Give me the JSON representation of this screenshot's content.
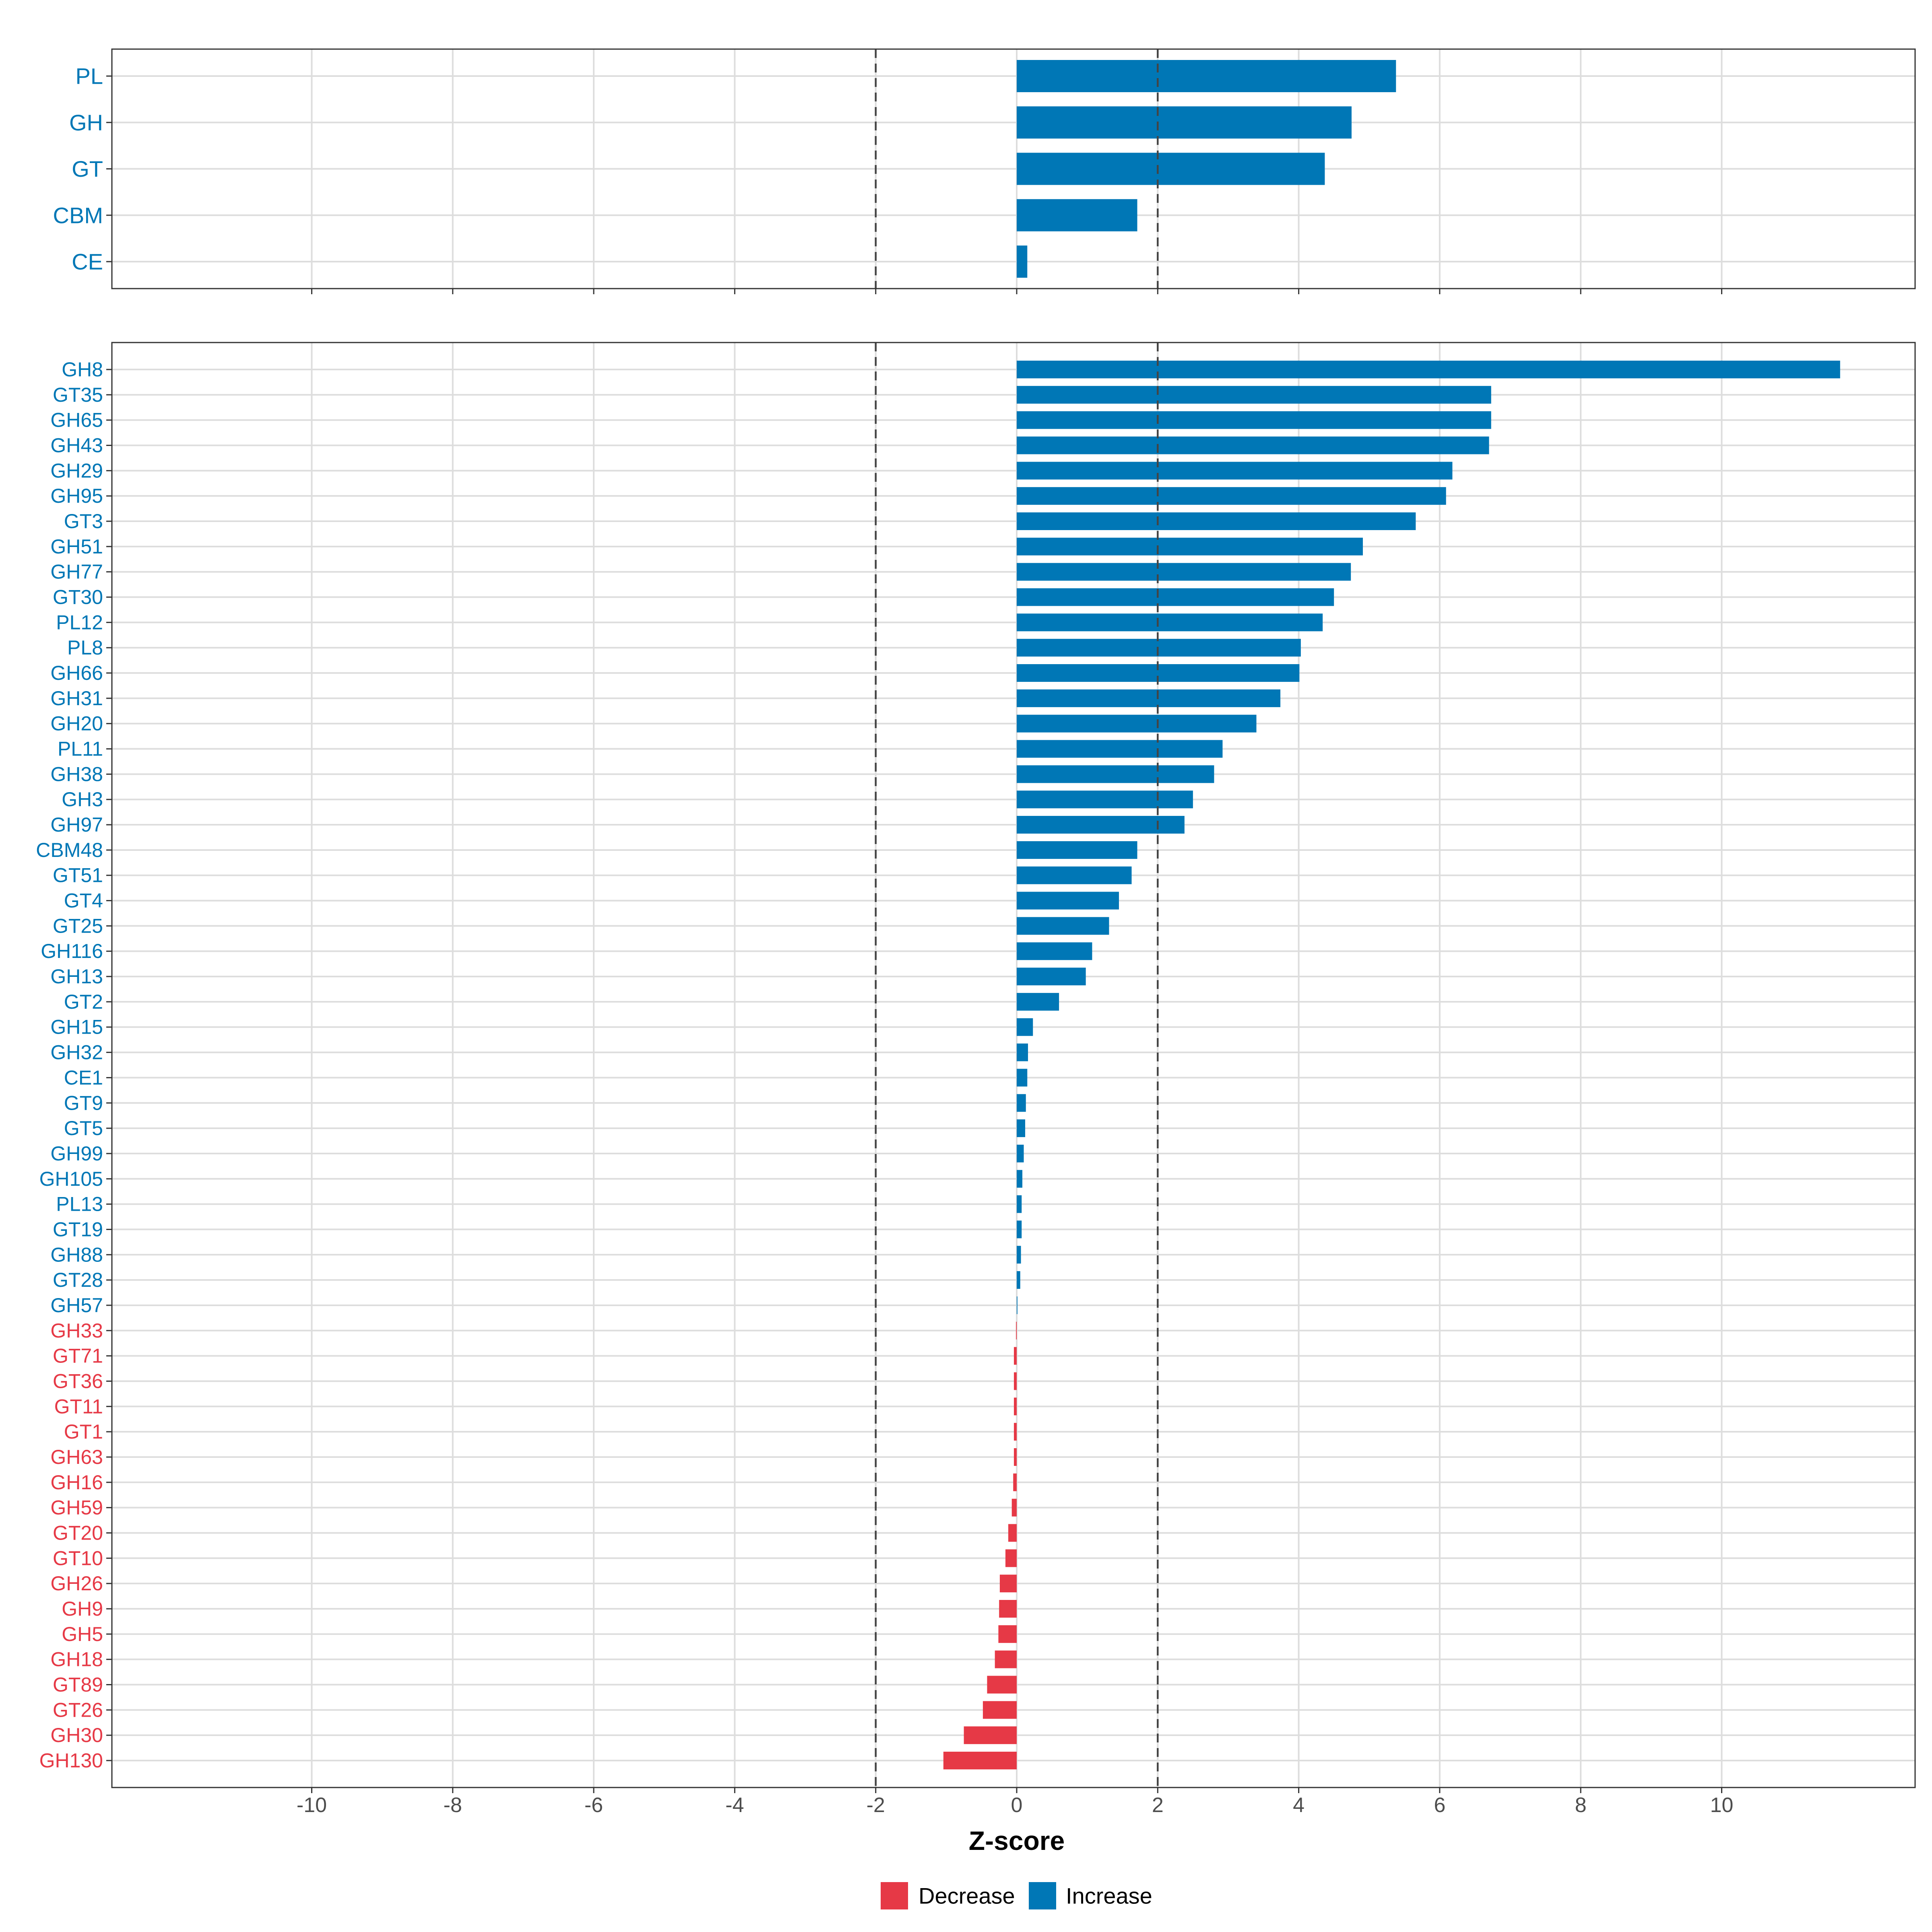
{
  "chart_data": [
    {
      "type": "bar",
      "orientation": "horizontal",
      "panel": "top",
      "categories": [
        "PL",
        "GH",
        "GT",
        "CBM",
        "CE"
      ],
      "values": [
        5.38,
        4.75,
        4.37,
        1.71,
        0.15
      ],
      "xlim": [
        -12.8,
        12.8
      ],
      "grid": true,
      "threshold_lines": [
        -2,
        2
      ]
    },
    {
      "type": "bar",
      "orientation": "horizontal",
      "panel": "bottom",
      "categories": [
        "GH8",
        "GT35",
        "GH65",
        "GH43",
        "GH29",
        "GH95",
        "GT3",
        "GH51",
        "GH77",
        "GT30",
        "PL12",
        "PL8",
        "GH66",
        "GH31",
        "GH20",
        "PL11",
        "GH38",
        "GH3",
        "GH97",
        "CBM48",
        "GT51",
        "GT4",
        "GT25",
        "GH116",
        "GH13",
        "GT2",
        "GH15",
        "GH32",
        "CE1",
        "GT9",
        "GT5",
        "GH99",
        "GH105",
        "PL13",
        "GT19",
        "GH88",
        "GT28",
        "GH57",
        "GH33",
        "GT71",
        "GT36",
        "GT11",
        "GT1",
        "GH63",
        "GH16",
        "GH59",
        "GT20",
        "GT10",
        "GH26",
        "GH9",
        "GH5",
        "GH18",
        "GT89",
        "GT26",
        "GH30",
        "GH130"
      ],
      "values": [
        11.68,
        6.73,
        6.73,
        6.7,
        6.18,
        6.09,
        5.66,
        4.91,
        4.74,
        4.5,
        4.34,
        4.03,
        4.01,
        3.74,
        3.4,
        2.92,
        2.8,
        2.5,
        2.38,
        1.71,
        1.63,
        1.45,
        1.31,
        1.07,
        0.98,
        0.6,
        0.23,
        0.16,
        0.15,
        0.13,
        0.12,
        0.1,
        0.08,
        0.07,
        0.07,
        0.06,
        0.05,
        0.01,
        -0.01,
        -0.04,
        -0.04,
        -0.04,
        -0.04,
        -0.04,
        -0.05,
        -0.07,
        -0.12,
        -0.16,
        -0.24,
        -0.25,
        -0.26,
        -0.31,
        -0.42,
        -0.48,
        -0.75,
        -1.04
      ],
      "xlim": [
        -12.8,
        12.8
      ],
      "grid": true,
      "threshold_lines": [
        -2,
        2
      ],
      "xticks": [
        "-10",
        "-8",
        "-6",
        "-4",
        "-2",
        "0",
        "2",
        "4",
        "6",
        "8",
        "10"
      ],
      "xlabel": "Z-score"
    }
  ],
  "legend": {
    "items": [
      {
        "label": "Decrease",
        "color": "#E63946"
      },
      {
        "label": "Increase",
        "color": "#0077B6"
      }
    ]
  },
  "colors": {
    "increase": "#0077B6",
    "decrease": "#E63946",
    "grid": "#dddddd",
    "frame": "#333333",
    "threshold": "#444444"
  }
}
